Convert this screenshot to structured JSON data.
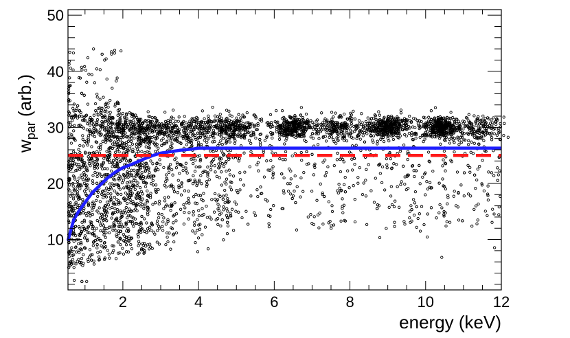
{
  "chart_data": {
    "type": "scatter",
    "title": "",
    "xlabel": "energy (keV)",
    "ylabel_main": "w",
    "ylabel_sub": "par",
    "ylabel_suffix": " (arb.)",
    "xlim": [
      0.55,
      12
    ],
    "ylim": [
      1,
      51
    ],
    "x_ticks": [
      2,
      4,
      6,
      8,
      10,
      12
    ],
    "x_tick_labels": [
      "2",
      "4",
      "6",
      "8",
      "10",
      "12"
    ],
    "y_ticks": [
      10,
      20,
      30,
      40,
      50
    ],
    "y_tick_labels": [
      "10",
      "20",
      "30",
      "40",
      "50"
    ],
    "grid": false,
    "scatter_description": "Several thousand black open circles; a dense band near w = 28-31 across all energies, with a broad tail extending down to w = 3-10 at low energy; dense clumps near 6.5, 9.0 and 10.4 keV at w ~ 30.",
    "point_count": 3200,
    "series": [
      {
        "name": "blue curve",
        "color": "#1f1fff",
        "style": "solid",
        "x": [
          0.55,
          0.7,
          0.85,
          1.0,
          1.2,
          1.4,
          1.6,
          1.8,
          2.0,
          2.2,
          2.5,
          2.8,
          3.0,
          3.2,
          3.5,
          3.8,
          4.0,
          4.3,
          12
        ],
        "y": [
          9.8,
          13.5,
          15.2,
          16.6,
          18.4,
          19.7,
          21.0,
          22.0,
          22.8,
          23.3,
          24.2,
          25.0,
          25.4,
          25.6,
          25.9,
          26.1,
          26.3,
          26.3,
          26.3
        ]
      },
      {
        "name": "red dashed line",
        "color": "#ff1a1a",
        "style": "dashed",
        "x": [
          0.55,
          12
        ],
        "y": [
          25.0,
          25.0
        ]
      }
    ]
  }
}
